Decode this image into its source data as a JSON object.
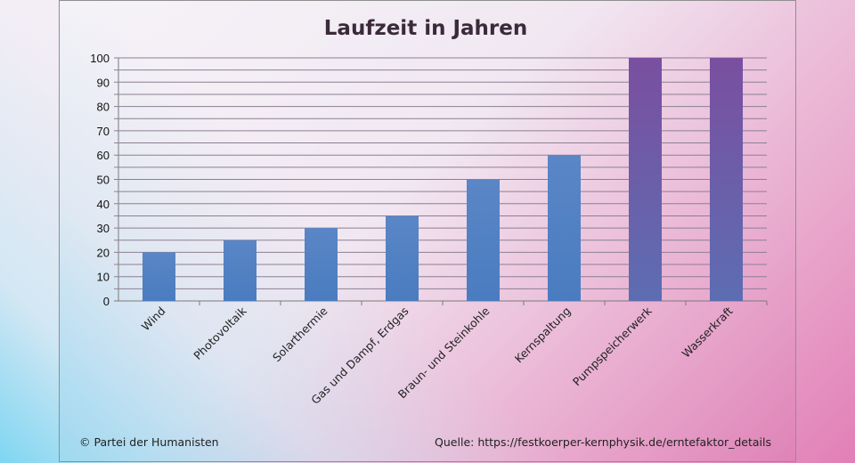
{
  "chart_data": {
    "type": "bar",
    "title": "Laufzeit in Jahren",
    "categories": [
      "Wind",
      "Photovoltaik",
      "Solarthermie",
      "Gas und Dampf, Erdgas",
      "Braun- und Steinkohle",
      "Kernspaltung",
      "Pumpspeicherwerk",
      "Wasserkraft"
    ],
    "values": [
      20,
      25,
      30,
      35,
      50,
      60,
      100,
      100
    ],
    "ylim": [
      0,
      100
    ],
    "yticks": [
      0,
      10,
      20,
      30,
      40,
      50,
      60,
      70,
      80,
      90,
      100
    ],
    "grid": true,
    "legend": "none",
    "bar_colors": [
      "#4f7dc0",
      "#4f7dc0",
      "#4f7dc0",
      "#4f7dc0",
      "#4f7dc0",
      "#4f7dc0",
      "#6658a8",
      "#6658a8"
    ]
  },
  "footer": {
    "left": "© Partei der Humanisten",
    "right": "Quelle: https://festkoerper-kernphysik.de/erntefaktor_details"
  }
}
